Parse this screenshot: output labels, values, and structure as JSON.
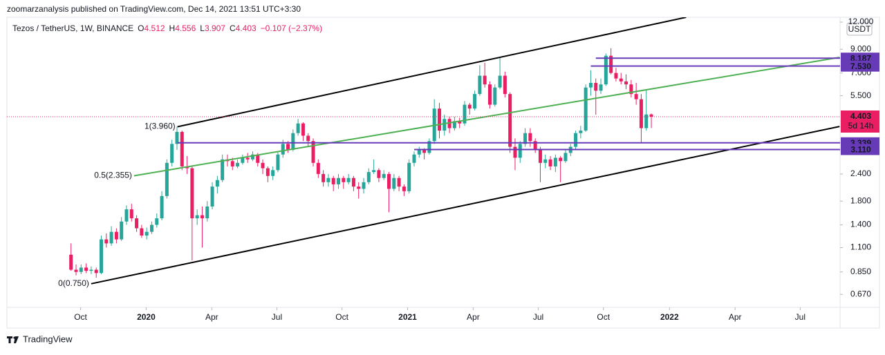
{
  "header": {
    "publisher": "zoomarzanalysis published on TradingView.com, Dec 14, 2021 13:51 UTC+3:30"
  },
  "footer": {
    "brand": "TradingView"
  },
  "chart_data": {
    "type": "candlestick",
    "symbol": "Tezos / TetherUS, 1W, BINANCE",
    "ohlc_prefixes": [
      "O",
      "H",
      "L",
      "C"
    ],
    "change": "−0.107 (−2.37%)",
    "currency": "USDT",
    "countdown": "5d 14h",
    "up_color": "#26a69a",
    "down_color": "#e91e63",
    "log_scale": true,
    "grid": false,
    "xlim": [
      -12.7,
      152.4
    ],
    "ylim": [
      0.584,
      12.63
    ],
    "xticks": [
      {
        "value": 1.9,
        "label": "Oct"
      },
      {
        "value": 14.9,
        "label": "2020"
      },
      {
        "value": 27.9,
        "label": "Apr"
      },
      {
        "value": 40.8,
        "label": "Jul"
      },
      {
        "value": 53.7,
        "label": "Oct"
      },
      {
        "value": 66.7,
        "label": "2021"
      },
      {
        "value": 79.7,
        "label": "Apr"
      },
      {
        "value": 92.6,
        "label": "Jul"
      },
      {
        "value": 105.5,
        "label": "Oct"
      },
      {
        "value": 118.6,
        "label": "2022"
      },
      {
        "value": 131.6,
        "label": "Apr"
      },
      {
        "value": 144.5,
        "label": "Jul"
      }
    ],
    "yticks": [
      {
        "value": 12,
        "label": "12.000"
      },
      {
        "value": 9,
        "label": "9.000"
      },
      {
        "value": 7,
        "label": "7.000"
      },
      {
        "value": 5.5,
        "label": "5.500"
      },
      {
        "value": 2.4,
        "label": "2.400"
      },
      {
        "value": 1.8,
        "label": "1.800"
      },
      {
        "value": 1.4,
        "label": "1.400"
      },
      {
        "value": 1.1,
        "label": "1.100"
      },
      {
        "value": 0.85,
        "label": "0.850"
      },
      {
        "value": 0.67,
        "label": "0.670"
      }
    ],
    "x": [
      0,
      1,
      2,
      3,
      4,
      5,
      6,
      7,
      8,
      9,
      10,
      11,
      12,
      13,
      14,
      15,
      16,
      17,
      18,
      19,
      20,
      21,
      22,
      23,
      24,
      25,
      26,
      27,
      28,
      29,
      30,
      31,
      32,
      33,
      34,
      35,
      36,
      37,
      38,
      39,
      40,
      41,
      42,
      43,
      44,
      45,
      46,
      47,
      48,
      49,
      50,
      51,
      52,
      53,
      54,
      55,
      56,
      57,
      58,
      59,
      60,
      61,
      62,
      63,
      64,
      65,
      66,
      67,
      68,
      69,
      70,
      71,
      72,
      73,
      74,
      75,
      76,
      77,
      78,
      79,
      80,
      81,
      82,
      83,
      84,
      85,
      86,
      87,
      88,
      89,
      90,
      91,
      92,
      93,
      94,
      95,
      96,
      97,
      98,
      99,
      100,
      101,
      102,
      103,
      104,
      105,
      106,
      107,
      108,
      109,
      110,
      111,
      112,
      113,
      114,
      115
    ],
    "open": [
      1.02,
      0.87,
      0.85,
      0.89,
      0.86,
      0.87,
      0.84,
      1.2,
      1.15,
      1.3,
      1.2,
      1.45,
      1.65,
      1.5,
      1.35,
      1.25,
      1.3,
      1.4,
      1.5,
      1.9,
      2.7,
      3.3,
      3.75,
      2.6,
      2.55,
      1.5,
      1.55,
      1.5,
      1.7,
      2.1,
      2.25,
      2.8,
      2.75,
      2.6,
      2.7,
      2.85,
      2.8,
      2.95,
      2.7,
      2.55,
      2.35,
      2.5,
      2.95,
      3.3,
      3.1,
      3.7,
      4.1,
      3.6,
      3.4,
      2.7,
      2.4,
      2.2,
      2.3,
      2.15,
      2.3,
      2.2,
      2.3,
      2.1,
      2.05,
      2.2,
      2.45,
      2.5,
      2.3,
      2.4,
      2.05,
      2.3,
      2.1,
      2.0,
      2.7,
      2.95,
      3.1,
      3.0,
      3.4,
      4.8,
      3.8,
      4.3,
      3.9,
      4.2,
      4.1,
      5.0,
      4.8,
      5.6,
      6.8,
      6.2,
      5.0,
      6.0,
      6.8,
      5.6,
      3.2,
      2.85,
      3.3,
      3.7,
      3.4,
      3.1,
      2.7,
      2.8,
      2.6,
      2.85,
      2.75,
      3.0,
      3.2,
      3.7,
      3.8,
      6.0,
      6.3,
      5.8,
      6.2,
      8.4,
      7.0,
      6.6,
      6.4,
      6.2,
      5.6,
      5.3,
      3.9,
      4.512
    ],
    "high": [
      1.15,
      0.92,
      0.92,
      0.93,
      0.9,
      0.89,
      1.25,
      1.28,
      1.38,
      1.35,
      1.52,
      1.72,
      1.75,
      1.55,
      1.4,
      1.36,
      1.45,
      1.58,
      2.0,
      2.8,
      3.45,
      3.96,
      3.8,
      2.9,
      2.6,
      1.65,
      1.7,
      1.8,
      2.2,
      2.35,
      2.95,
      2.95,
      2.85,
      2.8,
      2.95,
      3.0,
      3.05,
      3.0,
      2.8,
      2.6,
      2.6,
      3.05,
      3.45,
      3.4,
      3.85,
      4.3,
      4.15,
      3.7,
      3.5,
      2.8,
      2.5,
      2.4,
      2.35,
      2.4,
      2.35,
      2.4,
      2.35,
      2.2,
      2.3,
      2.55,
      2.8,
      2.55,
      2.5,
      2.45,
      2.4,
      2.35,
      2.15,
      2.8,
      3.05,
      3.2,
      3.15,
      3.5,
      5.3,
      5.1,
      4.5,
      4.4,
      4.4,
      4.35,
      5.2,
      5.1,
      5.8,
      7.6,
      7.8,
      6.4,
      6.2,
      8.3,
      7.1,
      5.7,
      3.5,
      3.4,
      3.9,
      3.9,
      3.5,
      3.2,
      2.95,
      2.9,
      2.95,
      2.9,
      3.1,
      3.3,
      3.8,
      4.0,
      6.2,
      7.2,
      6.6,
      6.6,
      8.6,
      9.1,
      7.4,
      7.0,
      6.9,
      6.5,
      6.3,
      5.6,
      5.9,
      4.556
    ],
    "low": [
      0.86,
      0.82,
      0.83,
      0.84,
      0.83,
      0.8,
      0.83,
      1.1,
      1.12,
      1.15,
      1.18,
      1.4,
      1.45,
      1.3,
      1.22,
      1.2,
      1.27,
      1.36,
      1.47,
      1.85,
      2.6,
      3.1,
      2.5,
      2.4,
      0.96,
      1.4,
      1.1,
      1.45,
      1.65,
      1.95,
      2.2,
      2.6,
      2.5,
      2.55,
      2.65,
      2.7,
      2.75,
      2.6,
      2.4,
      2.2,
      2.25,
      2.45,
      2.85,
      3.0,
      3.05,
      3.6,
      3.4,
      3.2,
      2.6,
      2.3,
      2.1,
      2.1,
      2.0,
      2.05,
      2.05,
      2.15,
      2.0,
      1.85,
      1.95,
      2.15,
      2.4,
      2.2,
      2.25,
      1.6,
      2.0,
      2.0,
      1.9,
      1.95,
      2.6,
      2.85,
      2.8,
      2.95,
      3.3,
      3.5,
      3.6,
      3.7,
      3.8,
      3.9,
      4.0,
      4.5,
      4.7,
      5.5,
      6.0,
      4.8,
      4.9,
      5.9,
      5.4,
      3.0,
      2.5,
      2.7,
      3.2,
      3.2,
      3.0,
      2.2,
      2.55,
      2.5,
      2.45,
      2.2,
      2.7,
      2.9,
      3.1,
      3.5,
      3.75,
      5.5,
      4.5,
      5.6,
      6.1,
      6.9,
      6.4,
      6.2,
      5.9,
      5.4,
      5.0,
      3.34,
      3.8,
      3.907
    ],
    "close": [
      0.87,
      0.85,
      0.89,
      0.86,
      0.87,
      0.84,
      1.2,
      1.15,
      1.3,
      1.2,
      1.45,
      1.65,
      1.5,
      1.35,
      1.25,
      1.3,
      1.4,
      1.5,
      1.9,
      2.7,
      3.3,
      3.75,
      2.6,
      2.55,
      1.5,
      1.55,
      1.5,
      1.7,
      2.1,
      2.25,
      2.8,
      2.75,
      2.6,
      2.7,
      2.85,
      2.8,
      2.95,
      2.7,
      2.55,
      2.35,
      2.5,
      2.95,
      3.3,
      3.1,
      3.7,
      4.1,
      3.6,
      3.4,
      2.7,
      2.4,
      2.2,
      2.3,
      2.15,
      2.3,
      2.2,
      2.3,
      2.1,
      2.05,
      2.2,
      2.45,
      2.5,
      2.3,
      2.4,
      2.05,
      2.3,
      2.1,
      2.0,
      2.7,
      2.95,
      3.1,
      3.0,
      3.4,
      4.8,
      3.8,
      4.3,
      3.9,
      4.2,
      4.1,
      5.0,
      4.8,
      5.6,
      6.8,
      6.2,
      5.0,
      6.0,
      6.8,
      5.6,
      3.2,
      2.85,
      3.3,
      3.7,
      3.4,
      3.1,
      2.7,
      2.8,
      2.6,
      2.85,
      2.75,
      3.0,
      3.2,
      3.7,
      3.8,
      6.0,
      6.3,
      5.8,
      6.2,
      8.4,
      7.0,
      6.6,
      6.4,
      6.2,
      5.6,
      5.3,
      3.9,
      4.51,
      4.403
    ],
    "price_lines": [
      {
        "value": 8.187,
        "label": "8.187",
        "start": 104,
        "color": "#673ab7"
      },
      {
        "value": 7.53,
        "label": "7.530",
        "start": 103,
        "color": "#673ab7"
      },
      {
        "value": 3.339,
        "label": "3.339",
        "start": 21.1,
        "color": "#673ab7"
      },
      {
        "value": 3.11,
        "label": "3.110",
        "start": 68,
        "color": "#673ab7"
      }
    ],
    "trend_lines": [
      {
        "label": "1(3.960)",
        "color": "#000000",
        "points": [
          [
            21.1,
            3.96
          ],
          [
            121.9,
            12.63
          ]
        ]
      },
      {
        "label": "0.5(2.355)",
        "color": "#4caf50",
        "points": [
          [
            12.5,
            2.355
          ],
          [
            152.3,
            8.26
          ]
        ]
      },
      {
        "label": "0(0.750)",
        "color": "#000000",
        "points": [
          [
            4.0,
            0.75
          ],
          [
            152.3,
            3.97
          ]
        ]
      }
    ]
  }
}
